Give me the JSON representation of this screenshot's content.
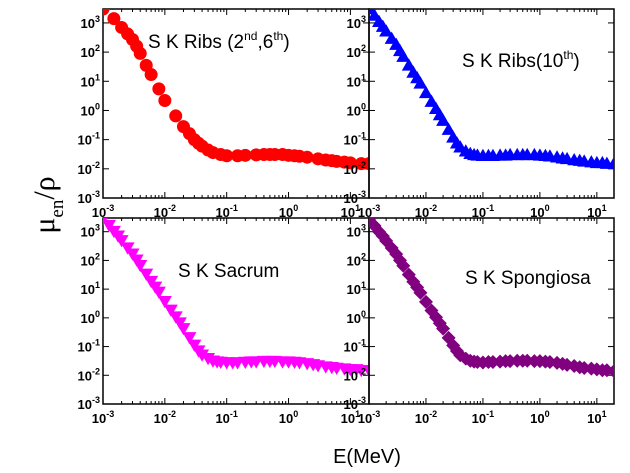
{
  "figure": {
    "xlabel": "E(MeV)",
    "ylabel": {
      "main": "μ",
      "sub": "en",
      "slash": "/",
      "rho": "ρ"
    }
  },
  "chart_data": [
    {
      "type": "scatter",
      "title": {
        "text": "S K Ribs (2",
        "sup1": "nd",
        "mid": ",6",
        "sup2": "th",
        "end": ")"
      },
      "marker": "circle",
      "color": "#ff0000",
      "x_scale": "log",
      "y_scale": "log",
      "xlim": [
        0.001,
        20
      ],
      "ylim": [
        0.001,
        3000
      ],
      "x": [
        0.001,
        0.0015,
        0.002,
        0.0025,
        0.003,
        0.0035,
        0.004,
        0.005,
        0.006,
        0.008,
        0.01,
        0.015,
        0.02,
        0.025,
        0.03,
        0.035,
        0.04,
        0.05,
        0.06,
        0.08,
        0.1,
        0.15,
        0.2,
        0.3,
        0.4,
        0.5,
        0.6,
        0.8,
        1,
        1.25,
        1.5,
        2,
        3,
        4,
        5,
        6,
        8,
        10,
        15,
        20
      ],
      "y": [
        3000,
        1400,
        700,
        420,
        270,
        160,
        90,
        35,
        17,
        5.5,
        2.2,
        0.65,
        0.28,
        0.16,
        0.1,
        0.075,
        0.06,
        0.044,
        0.036,
        0.031,
        0.028,
        0.028,
        0.029,
        0.03,
        0.031,
        0.031,
        0.031,
        0.031,
        0.029,
        0.028,
        0.027,
        0.025,
        0.022,
        0.02,
        0.019,
        0.018,
        0.017,
        0.016,
        0.015,
        0.015
      ]
    },
    {
      "type": "scatter",
      "title": {
        "text": "S K Ribs(10",
        "sup1": "th",
        "end": ")"
      },
      "marker": "triangle-up",
      "color": "#0000ff",
      "x_scale": "log",
      "y_scale": "log",
      "xlim": [
        0.001,
        20
      ],
      "ylim": [
        0.001,
        3000
      ],
      "x": [
        0.001,
        0.00125,
        0.0015,
        0.00175,
        0.002,
        0.0025,
        0.003,
        0.0035,
        0.004,
        0.005,
        0.006,
        0.007,
        0.008,
        0.01,
        0.0125,
        0.015,
        0.0175,
        0.02,
        0.025,
        0.03,
        0.035,
        0.04,
        0.05,
        0.06,
        0.07,
        0.08,
        0.1,
        0.125,
        0.15,
        0.2,
        0.25,
        0.3,
        0.4,
        0.5,
        0.6,
        0.8,
        1,
        1.25,
        1.5,
        2,
        2.5,
        3,
        4,
        5,
        6,
        8,
        10,
        12.5,
        15,
        20
      ],
      "y": [
        3000,
        1800,
        1100,
        750,
        520,
        290,
        180,
        110,
        70,
        35,
        20,
        13,
        8.5,
        4,
        2,
        1.15,
        0.7,
        0.45,
        0.22,
        0.12,
        0.075,
        0.055,
        0.04,
        0.033,
        0.03,
        0.029,
        0.028,
        0.028,
        0.028,
        0.029,
        0.029,
        0.03,
        0.03,
        0.03,
        0.03,
        0.03,
        0.029,
        0.028,
        0.027,
        0.025,
        0.023,
        0.022,
        0.02,
        0.019,
        0.018,
        0.017,
        0.016,
        0.016,
        0.015,
        0.015
      ]
    },
    {
      "type": "scatter",
      "title": {
        "text": "S K Sacrum"
      },
      "marker": "triangle-down",
      "color": "#ff00ff",
      "x_scale": "log",
      "y_scale": "log",
      "xlim": [
        0.001,
        20
      ],
      "ylim": [
        0.001,
        3000
      ],
      "x": [
        0.001,
        0.00125,
        0.0015,
        0.00175,
        0.002,
        0.0025,
        0.003,
        0.0035,
        0.004,
        0.005,
        0.006,
        0.007,
        0.008,
        0.01,
        0.0125,
        0.015,
        0.0175,
        0.02,
        0.025,
        0.03,
        0.035,
        0.04,
        0.05,
        0.06,
        0.07,
        0.08,
        0.1,
        0.125,
        0.15,
        0.2,
        0.25,
        0.3,
        0.4,
        0.5,
        0.6,
        0.8,
        1,
        1.25,
        1.5,
        2,
        2.5,
        3,
        4,
        5,
        6,
        8,
        10,
        12.5,
        15,
        20
      ],
      "y": [
        2800,
        1700,
        1050,
        720,
        500,
        280,
        170,
        105,
        68,
        34,
        19,
        12,
        8,
        3.8,
        1.9,
        1.1,
        0.68,
        0.43,
        0.21,
        0.115,
        0.072,
        0.052,
        0.039,
        0.032,
        0.03,
        0.029,
        0.028,
        0.028,
        0.028,
        0.029,
        0.03,
        0.03,
        0.031,
        0.031,
        0.031,
        0.03,
        0.03,
        0.029,
        0.028,
        0.026,
        0.024,
        0.022,
        0.02,
        0.019,
        0.018,
        0.017,
        0.016,
        0.016,
        0.015,
        0.015
      ]
    },
    {
      "type": "scatter",
      "title": {
        "text": "S K Spongiosa"
      },
      "marker": "diamond",
      "color": "#800080",
      "x_scale": "log",
      "y_scale": "log",
      "xlim": [
        0.001,
        20
      ],
      "ylim": [
        0.001,
        3000
      ],
      "x": [
        0.001,
        0.00125,
        0.0015,
        0.00175,
        0.002,
        0.0025,
        0.003,
        0.0035,
        0.004,
        0.005,
        0.006,
        0.007,
        0.008,
        0.01,
        0.0125,
        0.015,
        0.0175,
        0.02,
        0.025,
        0.03,
        0.035,
        0.04,
        0.05,
        0.06,
        0.07,
        0.08,
        0.1,
        0.125,
        0.15,
        0.2,
        0.25,
        0.3,
        0.4,
        0.5,
        0.6,
        0.8,
        1,
        1.25,
        1.5,
        2,
        2.5,
        3,
        4,
        5,
        6,
        8,
        10,
        12.5,
        15,
        20
      ],
      "y": [
        2600,
        1600,
        1000,
        700,
        480,
        270,
        165,
        100,
        65,
        32,
        18,
        11.5,
        7.5,
        3.6,
        1.8,
        1.05,
        0.65,
        0.42,
        0.2,
        0.11,
        0.07,
        0.05,
        0.038,
        0.032,
        0.03,
        0.029,
        0.028,
        0.029,
        0.029,
        0.03,
        0.031,
        0.031,
        0.032,
        0.032,
        0.032,
        0.031,
        0.031,
        0.03,
        0.029,
        0.027,
        0.025,
        0.023,
        0.021,
        0.019,
        0.018,
        0.017,
        0.016,
        0.015,
        0.015,
        0.014
      ]
    }
  ]
}
